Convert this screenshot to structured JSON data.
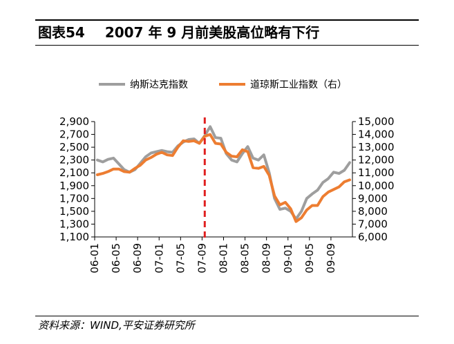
{
  "figure_label": "图表54",
  "figure_title": "2007 年 9 月前美股高位略有下行",
  "source_note": "资料来源：WIND,平安证券研究所",
  "colors": {
    "nasdaq": "#9e9e9e",
    "dow": "#ed7d31",
    "marker": "#e02020",
    "axis": "#000000"
  },
  "chart_data": {
    "type": "line",
    "title": "2007 年 9 月前美股高位略有下行",
    "x_tick_labels": [
      "06-01",
      "06-05",
      "06-09",
      "07-01",
      "07-05",
      "07-09",
      "08-01",
      "08-05",
      "08-09",
      "09-01",
      "09-05",
      "09-09"
    ],
    "x_range": [
      "2006-01",
      "2009-12"
    ],
    "legend_position": "top-center",
    "grid": false,
    "y_left": {
      "series": "纳斯达克指数",
      "ylim": [
        1100,
        2900
      ],
      "ticks": [
        1100,
        1300,
        1500,
        1700,
        1900,
        2100,
        2300,
        2500,
        2700,
        2900
      ],
      "tick_labels": [
        "1,100",
        "1,300",
        "1,500",
        "1,700",
        "1,900",
        "2,100",
        "2,300",
        "2,500",
        "2,700",
        "2,900"
      ]
    },
    "y_right": {
      "series": "道琼斯工业指数（右）",
      "ylim": [
        6000,
        15000
      ],
      "ticks": [
        6000,
        7000,
        8000,
        9000,
        10000,
        11000,
        12000,
        13000,
        14000,
        15000
      ],
      "tick_labels": [
        "6,000",
        "7,000",
        "8,000",
        "9,000",
        "10,000",
        "11,000",
        "12,000",
        "13,000",
        "14,000",
        "15,000"
      ]
    },
    "x": [
      "2006-01",
      "2006-02",
      "2006-03",
      "2006-04",
      "2006-05",
      "2006-06",
      "2006-07",
      "2006-08",
      "2006-09",
      "2006-10",
      "2006-11",
      "2006-12",
      "2007-01",
      "2007-02",
      "2007-03",
      "2007-04",
      "2007-05",
      "2007-06",
      "2007-07",
      "2007-08",
      "2007-09",
      "2007-10",
      "2007-11",
      "2007-12",
      "2008-01",
      "2008-02",
      "2008-03",
      "2008-04",
      "2008-05",
      "2008-06",
      "2008-07",
      "2008-08",
      "2008-09",
      "2008-10",
      "2008-11",
      "2008-12",
      "2009-01",
      "2009-02",
      "2009-03",
      "2009-04",
      "2009-05",
      "2009-06",
      "2009-07",
      "2009-08",
      "2009-09",
      "2009-10",
      "2009-11",
      "2009-12"
    ],
    "series": [
      {
        "name": "纳斯达克指数",
        "axis": "left",
        "color": "#9e9e9e",
        "values": [
          2300,
          2270,
          2310,
          2330,
          2240,
          2150,
          2110,
          2150,
          2250,
          2350,
          2410,
          2430,
          2450,
          2430,
          2420,
          2520,
          2580,
          2620,
          2630,
          2560,
          2680,
          2820,
          2650,
          2640,
          2400,
          2300,
          2270,
          2400,
          2510,
          2330,
          2300,
          2380,
          2100,
          1700,
          1530,
          1550,
          1500,
          1380,
          1500,
          1700,
          1770,
          1830,
          1950,
          2010,
          2110,
          2090,
          2140,
          2260
        ]
      },
      {
        "name": "道琼斯工业指数（右）",
        "axis": "right",
        "color": "#ed7d31",
        "values": [
          10850,
          10950,
          11100,
          11300,
          11300,
          11100,
          11050,
          11350,
          11600,
          12000,
          12200,
          12450,
          12600,
          12400,
          12350,
          13000,
          13500,
          13450,
          13500,
          13300,
          13850,
          14000,
          13300,
          13250,
          12600,
          12300,
          12250,
          12800,
          12650,
          11400,
          11350,
          11500,
          10800,
          9200,
          8500,
          8700,
          8200,
          7200,
          7500,
          8100,
          8450,
          8450,
          9150,
          9500,
          9700,
          9900,
          10300,
          10450
        ]
      }
    ],
    "annotations": [
      {
        "type": "vertical-dashed-line",
        "x": "2007-09"
      }
    ]
  }
}
